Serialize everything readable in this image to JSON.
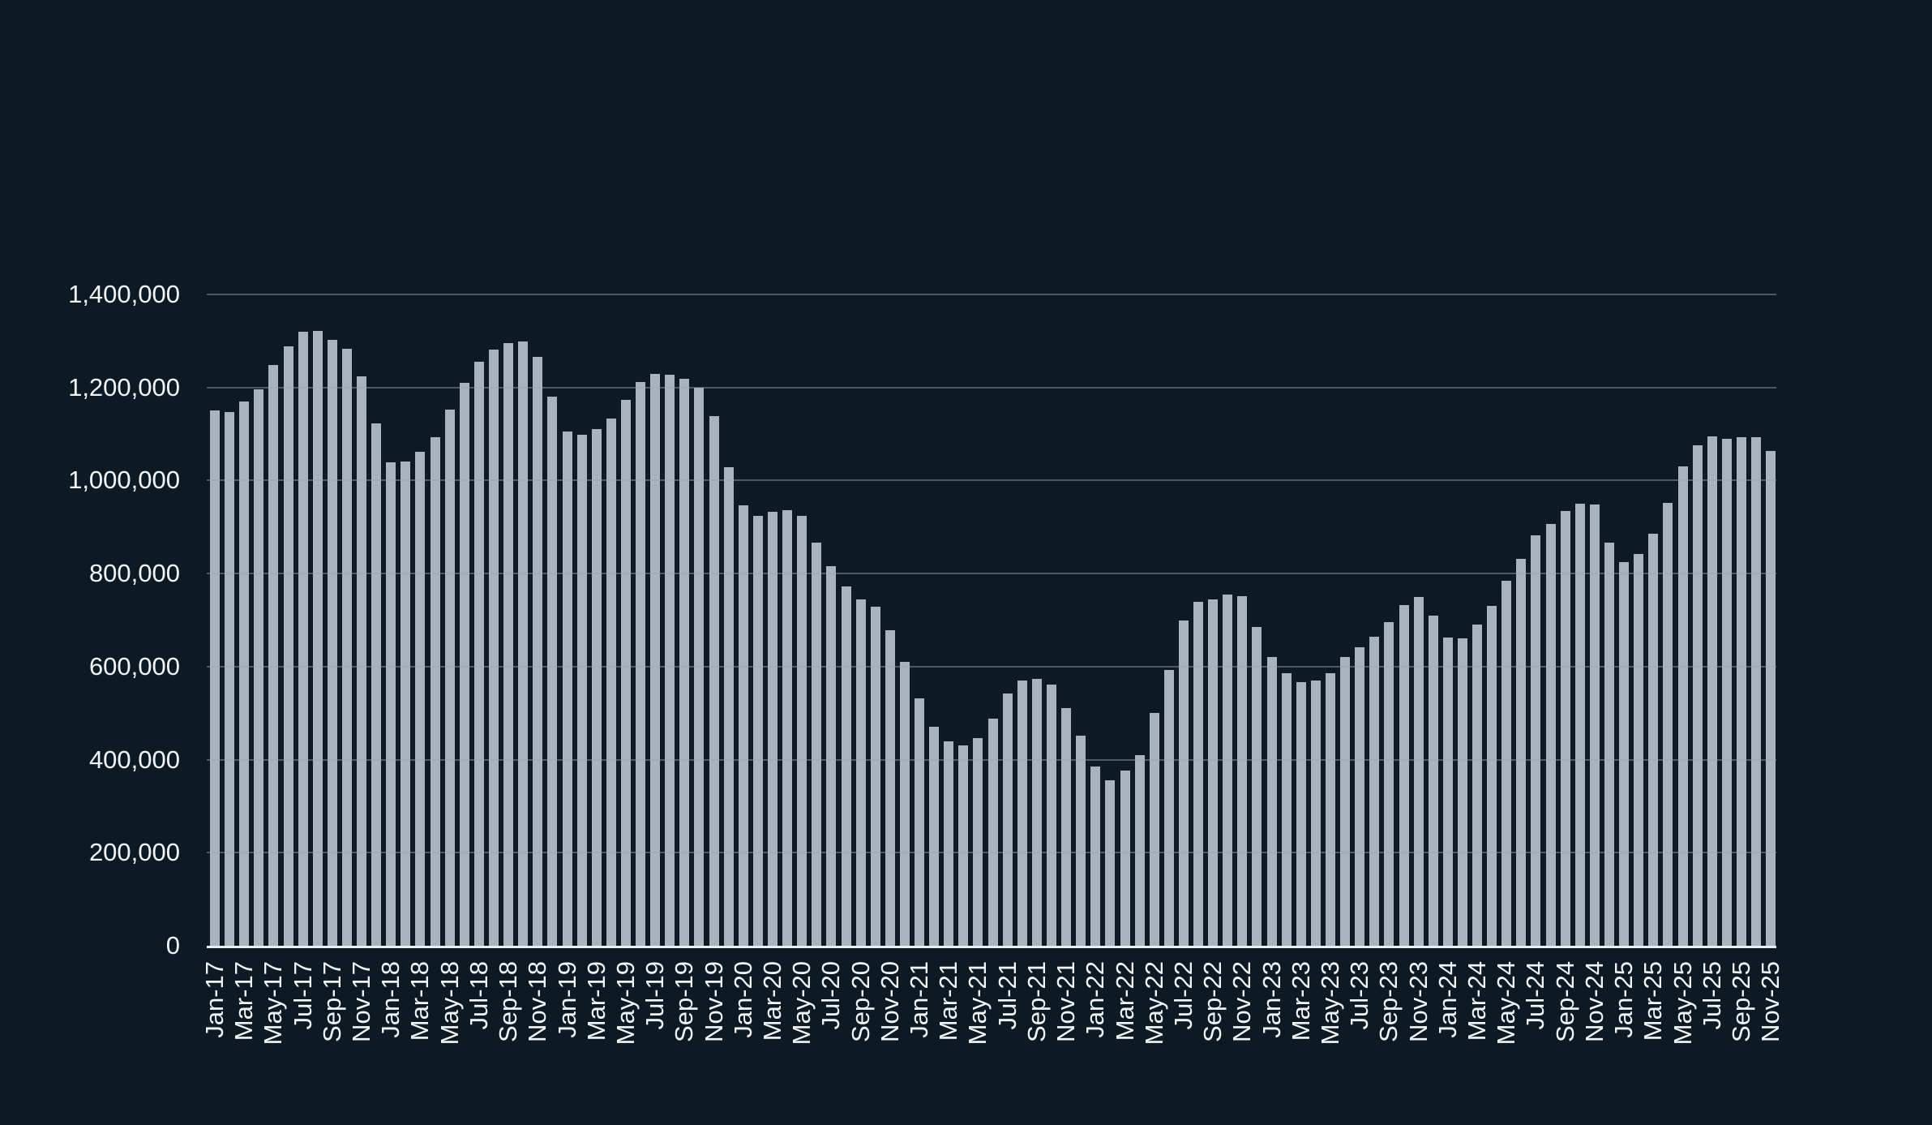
{
  "chart_data": {
    "type": "bar",
    "title": "",
    "xlabel": "",
    "ylabel": "",
    "ylim": [
      0,
      1400000
    ],
    "grid": "horizontal",
    "legend": "none",
    "x_tick_every": 2,
    "y_ticks": [
      {
        "value": 0,
        "label": "0"
      },
      {
        "value": 200000,
        "label": "200,000"
      },
      {
        "value": 400000,
        "label": "400,000"
      },
      {
        "value": 600000,
        "label": "600,000"
      },
      {
        "value": 800000,
        "label": "800,000"
      },
      {
        "value": 1000000,
        "label": "1,000,000"
      },
      {
        "value": 1200000,
        "label": "1,200,000"
      },
      {
        "value": 1400000,
        "label": "1,400,000"
      }
    ],
    "categories": [
      "Jan-17",
      "Feb-17",
      "Mar-17",
      "Apr-17",
      "May-17",
      "Jun-17",
      "Jul-17",
      "Aug-17",
      "Sep-17",
      "Oct-17",
      "Nov-17",
      "Dec-17",
      "Jan-18",
      "Feb-18",
      "Mar-18",
      "Apr-18",
      "May-18",
      "Jun-18",
      "Jul-18",
      "Aug-18",
      "Sep-18",
      "Oct-18",
      "Nov-18",
      "Dec-18",
      "Jan-19",
      "Feb-19",
      "Mar-19",
      "Apr-19",
      "May-19",
      "Jun-19",
      "Jul-19",
      "Aug-19",
      "Sep-19",
      "Oct-19",
      "Nov-19",
      "Dec-19",
      "Jan-20",
      "Feb-20",
      "Mar-20",
      "Apr-20",
      "May-20",
      "Jun-20",
      "Jul-20",
      "Aug-20",
      "Sep-20",
      "Oct-20",
      "Nov-20",
      "Dec-20",
      "Jan-21",
      "Feb-21",
      "Mar-21",
      "Apr-21",
      "May-21",
      "Jun-21",
      "Jul-21",
      "Aug-21",
      "Sep-21",
      "Oct-21",
      "Nov-21",
      "Dec-21",
      "Jan-22",
      "Feb-22",
      "Mar-22",
      "Apr-22",
      "May-22",
      "Jun-22",
      "Jul-22",
      "Aug-22",
      "Sep-22",
      "Oct-22",
      "Nov-22",
      "Dec-22",
      "Jan-23",
      "Feb-23",
      "Mar-23",
      "Apr-23",
      "May-23",
      "Jun-23",
      "Jul-23",
      "Aug-23",
      "Sep-23",
      "Oct-23",
      "Nov-23",
      "Dec-23",
      "Jan-24",
      "Feb-24",
      "Mar-24",
      "Apr-24",
      "May-24",
      "Jun-24",
      "Jul-24",
      "Aug-24",
      "Sep-24",
      "Oct-24",
      "Nov-24",
      "Dec-24",
      "Jan-25",
      "Feb-25",
      "Mar-25",
      "Apr-25",
      "May-25",
      "Jun-25",
      "Jul-25",
      "Aug-25",
      "Sep-25",
      "Oct-25",
      "Nov-25"
    ],
    "values": [
      1150000,
      1147000,
      1170000,
      1196000,
      1248000,
      1288000,
      1319000,
      1322000,
      1303000,
      1283000,
      1224000,
      1122000,
      1039000,
      1041000,
      1061000,
      1094000,
      1152000,
      1210000,
      1255000,
      1281000,
      1295000,
      1299000,
      1266000,
      1181000,
      1105000,
      1098000,
      1111000,
      1133000,
      1174000,
      1211000,
      1230000,
      1228000,
      1218000,
      1199000,
      1138000,
      1028000,
      946000,
      924000,
      933000,
      936000,
      924000,
      866000,
      816000,
      772000,
      744000,
      728000,
      679000,
      611000,
      531000,
      470000,
      439000,
      431000,
      447000,
      488000,
      543000,
      570000,
      573000,
      561000,
      510000,
      452000,
      385000,
      355000,
      376000,
      410000,
      500000,
      592000,
      700000,
      739000,
      744000,
      755000,
      751000,
      685000,
      620000,
      586000,
      566000,
      570000,
      586000,
      621000,
      642000,
      664000,
      696000,
      733000,
      750000,
      710000,
      663000,
      661000,
      691000,
      731000,
      784000,
      832000,
      882000,
      907000,
      935000,
      950000,
      948000,
      867000,
      824000,
      842000,
      886000,
      952000,
      1030000,
      1075000,
      1095000,
      1089000,
      1094000,
      1093000,
      1064000
    ],
    "colors": {
      "background": "#0d1a23",
      "bar": "#a9b2bf",
      "gridline_rgba": "rgba(155,167,178,0.45)",
      "axis_line": "#e9eef3",
      "label_text": "#f2f5f8"
    }
  }
}
